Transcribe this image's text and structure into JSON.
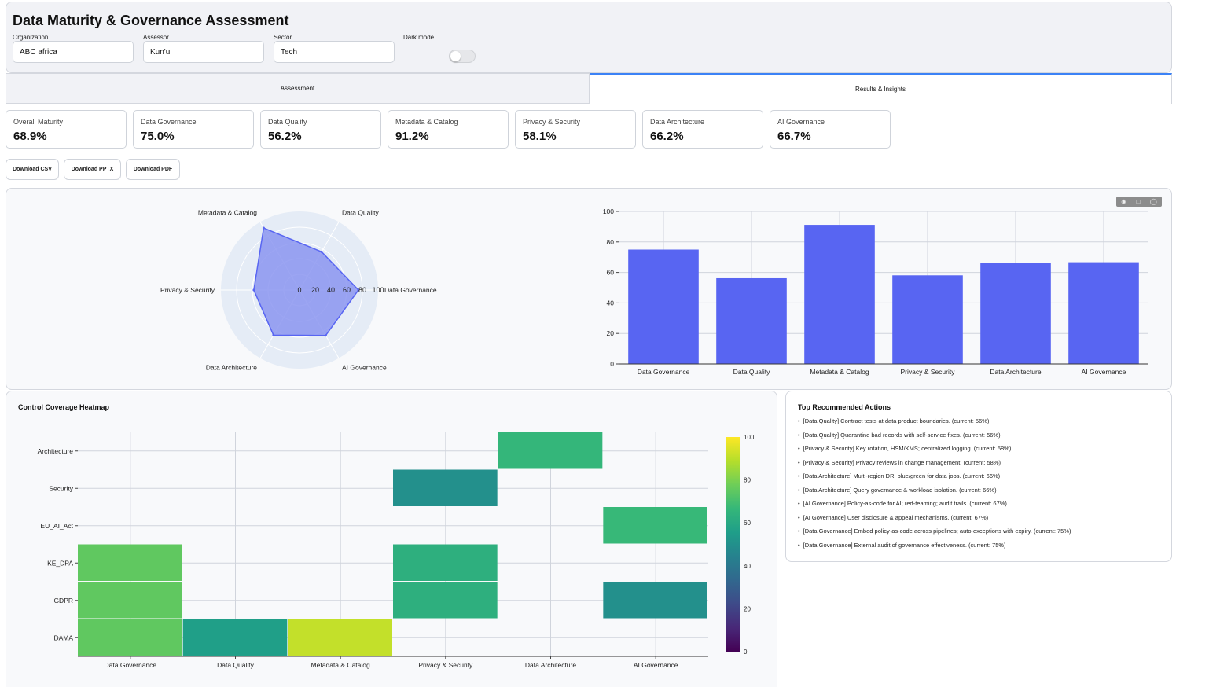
{
  "header": {
    "title": "Data Maturity & Governance Assessment",
    "organization": {
      "label": "Organization",
      "value": "ABC africa"
    },
    "assessor": {
      "label": "Assessor",
      "value": "Kun'u"
    },
    "sector": {
      "label": "Sector",
      "value": "Tech"
    },
    "dark_mode": {
      "label": "Dark mode",
      "enabled": false
    }
  },
  "tabs": [
    {
      "label": "Assessment",
      "active": false
    },
    {
      "label": "Results & Insights",
      "active": true
    }
  ],
  "metrics": [
    {
      "label": "Overall Maturity",
      "value": "68.9%"
    },
    {
      "label": "Data Governance",
      "value": "75.0%"
    },
    {
      "label": "Data Quality",
      "value": "56.2%"
    },
    {
      "label": "Metadata & Catalog",
      "value": "91.2%"
    },
    {
      "label": "Privacy & Security",
      "value": "58.1%"
    },
    {
      "label": "Data Architecture",
      "value": "66.2%"
    },
    {
      "label": "AI Governance",
      "value": "66.7%"
    }
  ],
  "downloads": {
    "csv": "Download CSV",
    "pptx": "Download PPTX",
    "pdf": "Download PDF"
  },
  "colors": {
    "accent": "#3b82f6",
    "bar": "#5865f2",
    "radar_fill": "#8b95f0",
    "radar_line": "#5865f2",
    "radar_bg": "#e5ecf6"
  },
  "modebar_icons": [
    "camera-icon",
    "box-select-icon",
    "lasso-icon"
  ],
  "chart_data": [
    {
      "type": "radar",
      "categories": [
        "Data Governance",
        "Data Quality",
        "Metadata & Catalog",
        "Privacy & Security",
        "Data Architecture",
        "AI Governance"
      ],
      "values": [
        75.0,
        56.2,
        91.2,
        58.1,
        66.2,
        66.7
      ],
      "rticks": [
        "0",
        "20",
        "40",
        "60",
        "80",
        "100"
      ],
      "rlim": [
        0,
        100
      ]
    },
    {
      "type": "bar",
      "categories": [
        "Data Governance",
        "Data Quality",
        "Metadata & Catalog",
        "Privacy & Security",
        "Data Architecture",
        "AI Governance"
      ],
      "values": [
        75.0,
        56.2,
        91.2,
        58.1,
        66.2,
        66.7
      ],
      "yticks": [
        "0",
        "20",
        "40",
        "60",
        "80",
        "100"
      ],
      "ylim": [
        0,
        100
      ]
    },
    {
      "type": "heatmap",
      "title": "Control Coverage Heatmap",
      "x": [
        "Data Governance",
        "Data Quality",
        "Metadata & Catalog",
        "Privacy & Security",
        "Data Architecture",
        "AI Governance"
      ],
      "y": [
        "DAMA",
        "GDPR",
        "KE_DPA",
        "EU_AI_Act",
        "Security",
        "Architecture"
      ],
      "z": [
        [
          75,
          56,
          91,
          null,
          null,
          null
        ],
        [
          75,
          null,
          null,
          63,
          null,
          50
        ],
        [
          75,
          null,
          null,
          63,
          null,
          null
        ],
        [
          null,
          null,
          null,
          null,
          null,
          67
        ],
        [
          null,
          null,
          null,
          50,
          null,
          null
        ],
        [
          null,
          null,
          null,
          null,
          66,
          null
        ]
      ],
      "colorscale": "Viridis",
      "zlim": [
        0,
        100
      ],
      "colorbar_ticks": [
        "0",
        "20",
        "40",
        "60",
        "80",
        "100"
      ]
    }
  ],
  "recommendations": {
    "title": "Top Recommended Actions",
    "items": [
      "[Data Quality] Contract tests at data product boundaries. (current: 56%)",
      "[Data Quality] Quarantine bad records with self-service fixes. (current: 56%)",
      "[Privacy & Security] Key rotation, HSM/KMS; centralized logging. (current: 58%)",
      "[Privacy & Security] Privacy reviews in change management. (current: 58%)",
      "[Data Architecture] Multi-region DR; blue/green for data jobs. (current: 66%)",
      "[Data Architecture] Query governance & workload isolation. (current: 66%)",
      "[AI Governance] Policy-as-code for AI; red-teaming; audit trails. (current: 67%)",
      "[AI Governance] User disclosure & appeal mechanisms. (current: 67%)",
      "[Data Governance] Embed policy-as-code across pipelines; auto-exceptions with expiry. (current: 75%)",
      "[Data Governance] External audit of governance effectiveness. (current: 75%)"
    ]
  }
}
